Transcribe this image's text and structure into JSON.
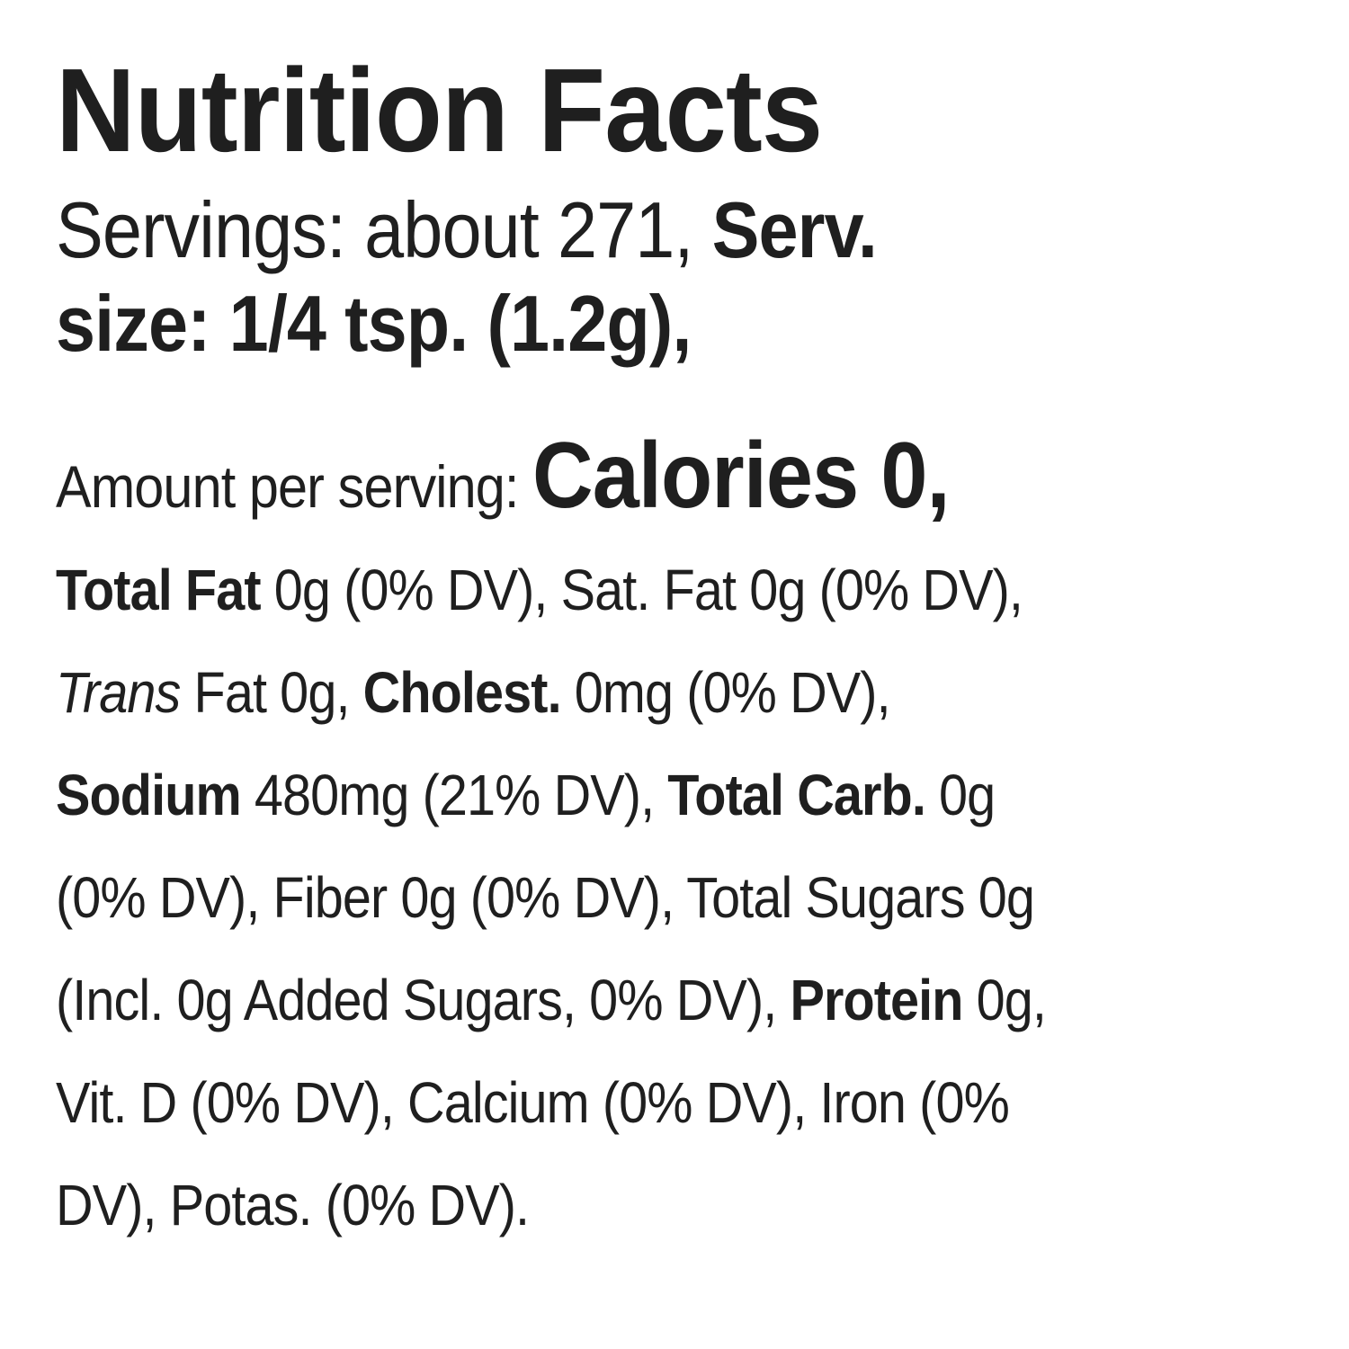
{
  "label": {
    "title": "Nutrition Facts",
    "servings": {
      "line1_regular": "Servings: about 271, ",
      "line1_bold": "Serv.",
      "line2_bold": "size: 1/4 tsp. (1.2g),"
    },
    "amount": {
      "label": "Amount per serving: ",
      "calories": "Calories 0,"
    },
    "nutrient_lines": [
      [
        {
          "text": "Total Fat",
          "style": "bold"
        },
        {
          "text": " 0g (0% DV), Sat. Fat 0g (0% DV),",
          "style": "regular"
        }
      ],
      [
        {
          "text": "Trans",
          "style": "italic"
        },
        {
          "text": " Fat 0g, ",
          "style": "regular"
        },
        {
          "text": "Cholest.",
          "style": "bold"
        },
        {
          "text": " 0mg (0% DV),",
          "style": "regular"
        }
      ],
      [
        {
          "text": "Sodium",
          "style": "bold"
        },
        {
          "text": " 480mg (21% DV), ",
          "style": "regular"
        },
        {
          "text": "Total Carb.",
          "style": "bold"
        },
        {
          "text": " 0g",
          "style": "regular"
        }
      ],
      [
        {
          "text": "(0% DV), Fiber 0g (0% DV), Total Sugars 0g",
          "style": "regular"
        }
      ],
      [
        {
          "text": "(Incl. 0g Added Sugars, 0% DV), ",
          "style": "regular"
        },
        {
          "text": "Protein",
          "style": "bold"
        },
        {
          "text": " 0g,",
          "style": "regular"
        }
      ],
      [
        {
          "text": "Vit. D (0% DV), Calcium (0% DV), Iron (0%",
          "style": "regular"
        }
      ],
      [
        {
          "text": "DV), Potas. (0% DV).",
          "style": "regular"
        }
      ]
    ]
  }
}
